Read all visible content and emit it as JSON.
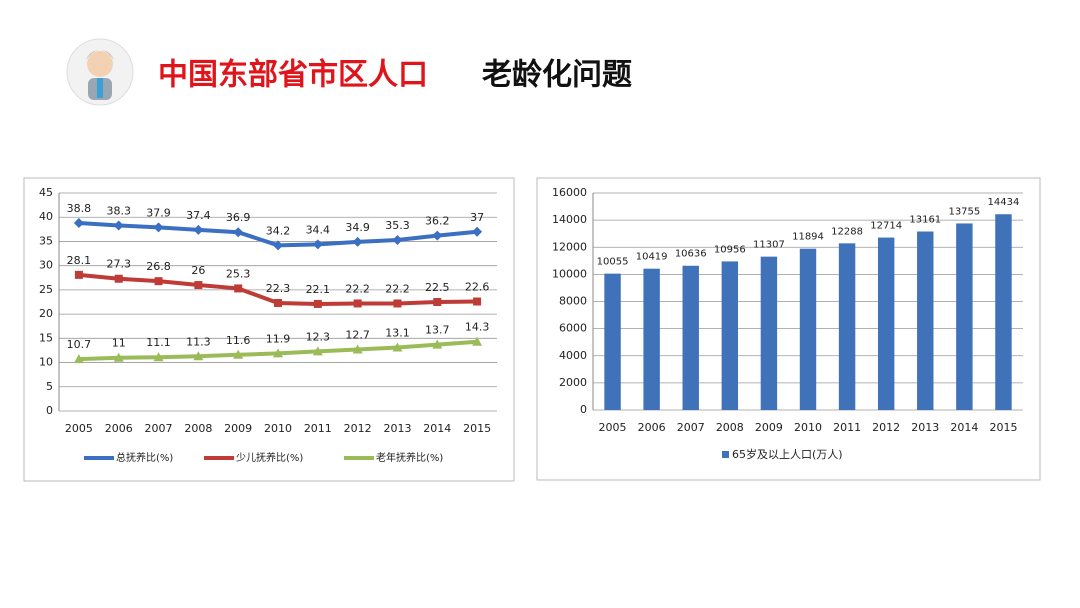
{
  "header": {
    "title_red": "中国东部省市区人口",
    "title_black": "老龄化问题"
  },
  "chart_data": [
    {
      "type": "line",
      "categories": [
        "2005",
        "2006",
        "2007",
        "2008",
        "2009",
        "2010",
        "2011",
        "2012",
        "2013",
        "2014",
        "2015"
      ],
      "series": [
        {
          "name": "总抚养比(%)",
          "color": "#3b6fc2",
          "values": [
            38.8,
            38.3,
            37.9,
            37.4,
            36.9,
            34.2,
            34.4,
            34.9,
            35.3,
            36.2,
            37
          ]
        },
        {
          "name": "少儿抚养比(%)",
          "color": "#be3b36",
          "values": [
            28.1,
            27.3,
            26.8,
            26,
            25.3,
            22.3,
            22.1,
            22.2,
            22.2,
            22.5,
            22.6
          ]
        },
        {
          "name": "老年抚养比(%)",
          "color": "#9bbb59",
          "values": [
            10.7,
            11,
            11.1,
            11.3,
            11.6,
            11.9,
            12.3,
            12.7,
            13.1,
            13.7,
            14.3
          ]
        }
      ],
      "ylim": [
        0,
        45
      ],
      "yticks": [
        0,
        5,
        10,
        15,
        20,
        25,
        30,
        35,
        40,
        45
      ],
      "grid": true,
      "legend": "bottom"
    },
    {
      "type": "bar",
      "categories": [
        "2005",
        "2006",
        "2007",
        "2008",
        "2009",
        "2010",
        "2011",
        "2012",
        "2013",
        "2014",
        "2015"
      ],
      "series": [
        {
          "name": "65岁及以上人口(万人)",
          "color": "#3f72b8",
          "values": [
            10055,
            10419,
            10636,
            10956,
            11307,
            11894,
            12288,
            12714,
            13161,
            13755,
            14434
          ]
        }
      ],
      "ylim": [
        0,
        16000
      ],
      "yticks": [
        0,
        2000,
        4000,
        6000,
        8000,
        10000,
        12000,
        14000,
        16000
      ],
      "grid": true,
      "legend": "bottom"
    }
  ]
}
